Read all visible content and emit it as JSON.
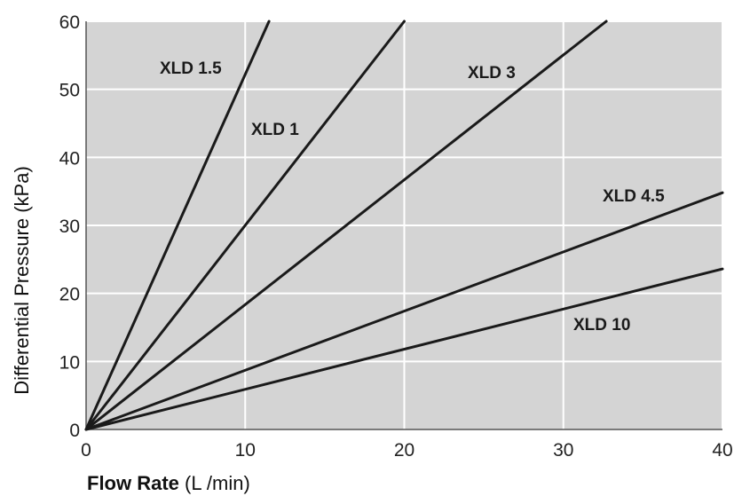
{
  "chart_data": {
    "type": "line",
    "title": "",
    "xlabel_bold": "Flow Rate",
    "xlabel_rest": " (L /min)",
    "ylabel": "Differential Pressure (kPa)",
    "xlim": [
      0,
      40
    ],
    "ylim": [
      0,
      60
    ],
    "x_ticks": [
      0,
      10,
      20,
      30,
      40
    ],
    "y_ticks": [
      0,
      10,
      20,
      30,
      40,
      50,
      60
    ],
    "grid": true,
    "legend": "inline labels",
    "colors": {
      "plot_background": "#d4d4d4",
      "grid": "#ffffff",
      "line": "#1a1a1a"
    },
    "series": [
      {
        "name": "XLD 1.5",
        "x": [
          0,
          11.5
        ],
        "y": [
          0,
          60
        ]
      },
      {
        "name": "XLD 1",
        "x": [
          0,
          20
        ],
        "y": [
          0,
          60
        ]
      },
      {
        "name": "XLD 3",
        "x": [
          0,
          32.7
        ],
        "y": [
          0,
          60
        ]
      },
      {
        "name": "XLD 4.5",
        "x": [
          0,
          40
        ],
        "y": [
          0,
          34.8
        ]
      },
      {
        "name": "XLD 10",
        "x": [
          0,
          40
        ],
        "y": [
          0,
          23.6
        ]
      }
    ]
  }
}
